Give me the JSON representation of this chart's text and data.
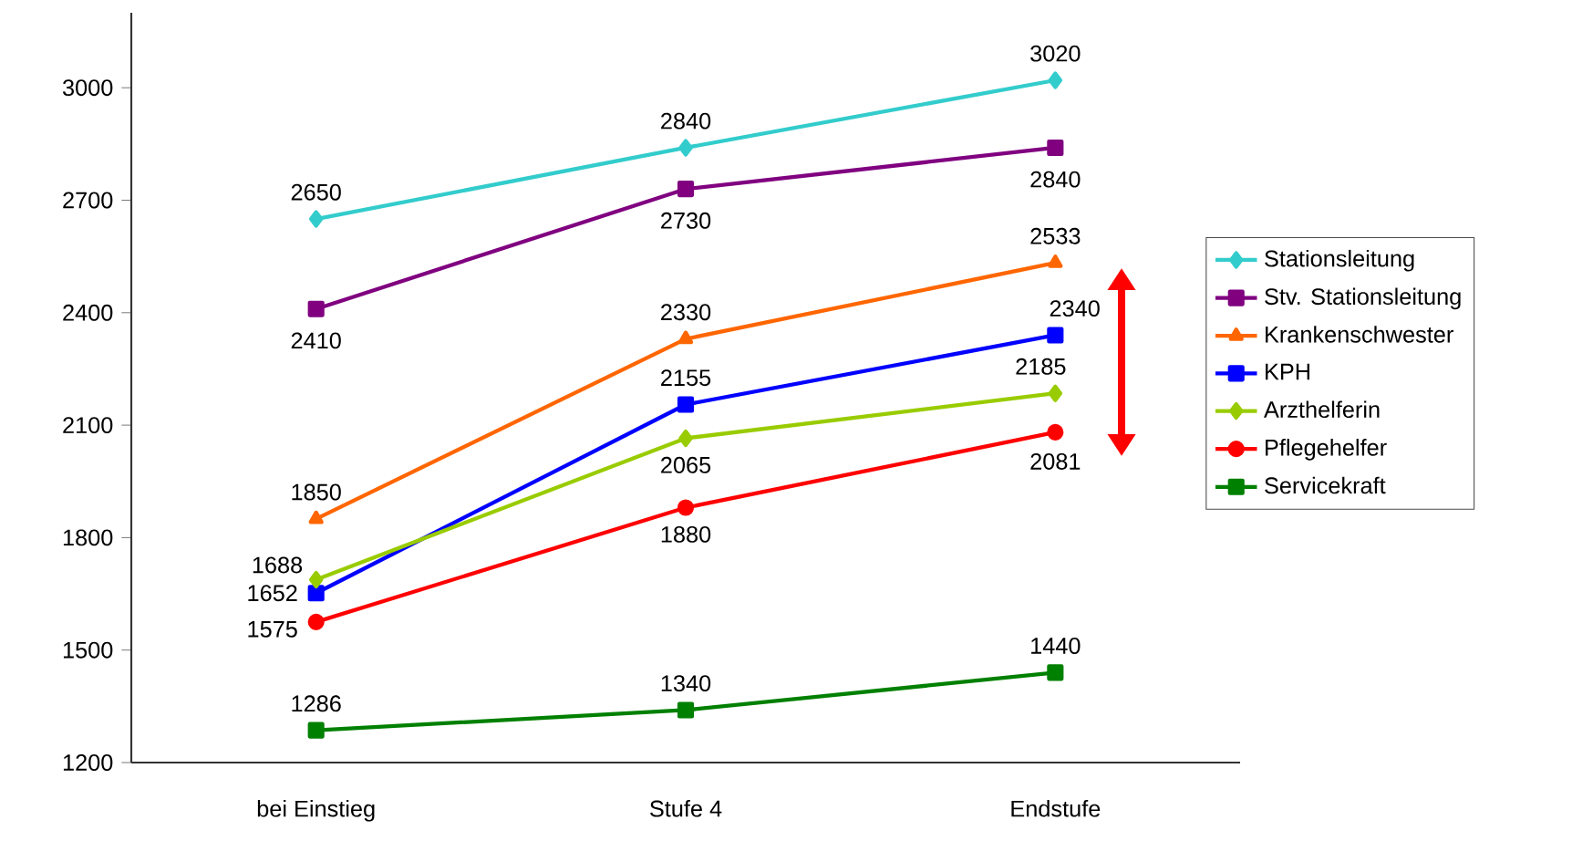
{
  "chart_data": {
    "type": "line",
    "categories": [
      "bei Einstieg",
      "Stufe 4",
      "Endstufe"
    ],
    "ylim": [
      1200,
      3200
    ],
    "yticks": [
      1200,
      1500,
      1800,
      2100,
      2400,
      2700,
      3000
    ],
    "grid": false,
    "legend": "right",
    "data_labels": true,
    "line_style": "solid",
    "series": [
      {
        "name": "Stationsleitung",
        "color": "#33cccc",
        "marker": "diamond",
        "values": [
          2650,
          2840,
          3020
        ]
      },
      {
        "name": "Stv. Stationsleitung",
        "color": "#800080",
        "marker": "square",
        "values": [
          2410,
          2730,
          2840
        ]
      },
      {
        "name": "Krankenschwester",
        "color": "#ff6600",
        "marker": "triangle",
        "values": [
          1850,
          2330,
          2533
        ]
      },
      {
        "name": "KPH",
        "color": "#0000ff",
        "marker": "square",
        "values": [
          1652,
          2155,
          2340
        ]
      },
      {
        "name": "Arzthelferin",
        "color": "#99cc00",
        "marker": "diamond",
        "values": [
          1688,
          2065,
          2185
        ]
      },
      {
        "name": "Pflegehelfer",
        "color": "#ff0000",
        "marker": "circle",
        "values": [
          1575,
          1880,
          2081
        ]
      },
      {
        "name": "Servicekraft",
        "color": "#008000",
        "marker": "square",
        "values": [
          1286,
          1340,
          1440
        ]
      }
    ]
  }
}
